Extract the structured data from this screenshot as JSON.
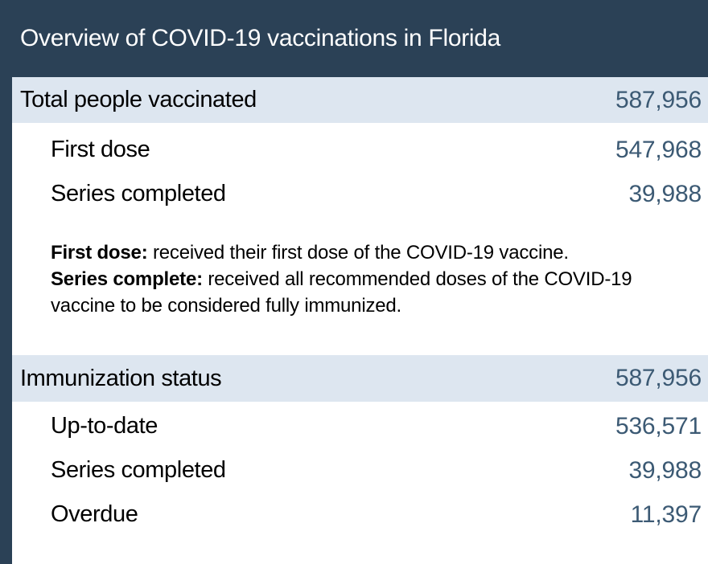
{
  "panel": {
    "title": "Overview of COVID-19 vaccinations in Florida"
  },
  "colors": {
    "header_navy": "#2b4156",
    "section_header_blue": "#dde6f0",
    "value_blue": "#3c5a74",
    "text_black": "#000000",
    "background": "#ffffff"
  },
  "sections": [
    {
      "header": {
        "label": "Total people vaccinated",
        "value": "587,956"
      },
      "rows": [
        {
          "label": "First dose",
          "value": "547,968"
        },
        {
          "label": "Series completed",
          "value": "39,988"
        }
      ],
      "notes": [
        {
          "term": "First dose:",
          "definition": "received their first dose of the COVID-19 vaccine."
        },
        {
          "term": "Series complete:",
          "definition": "received all recommended doses of the COVID-19 vaccine to be considered fully immunized."
        }
      ]
    },
    {
      "header": {
        "label": "Immunization status",
        "value": "587,956"
      },
      "rows": [
        {
          "label": "Up-to-date",
          "value": "536,571"
        },
        {
          "label": "Series completed",
          "value": "39,988"
        },
        {
          "label": "Overdue",
          "value": "11,397"
        }
      ]
    }
  ]
}
